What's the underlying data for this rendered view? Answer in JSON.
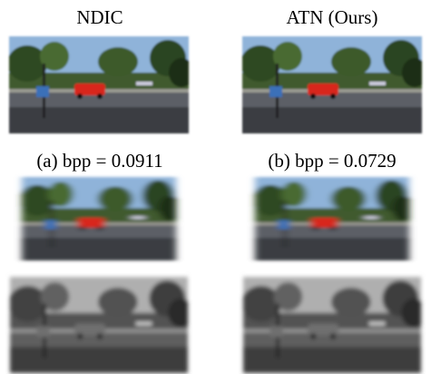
{
  "columns": [
    {
      "title": "NDIC",
      "caption": "(a) bpp = 0.0911"
    },
    {
      "title": "ATN (Ours)",
      "caption": "(b) bpp = 0.0729"
    }
  ]
}
